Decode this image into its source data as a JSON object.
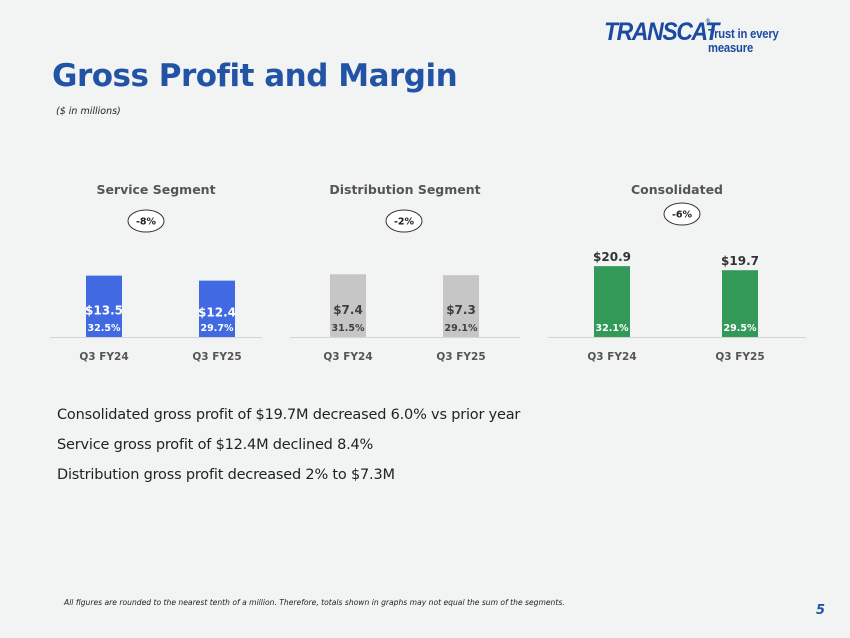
{
  "header": {
    "logo_text": "TRANSCAT",
    "logo_registered": "®",
    "tagline": "Trust in every measure",
    "title": "Gross Profit and Margin",
    "subtitle": "($ in millions)"
  },
  "chart_data": [
    {
      "type": "bar",
      "title": "Service Segment",
      "categories": [
        "Q3 FY24",
        "Q3 FY25"
      ],
      "values": [
        13.5,
        12.4
      ],
      "value_labels": [
        "$13.5",
        "$12.4"
      ],
      "margin_labels": [
        "32.5%",
        "29.7%"
      ],
      "change_label": "-8%",
      "ylim": [
        0,
        22
      ],
      "color": "#4169e1",
      "value_label_position": "inside",
      "value_label_color": "#ffffff",
      "margin_label_color": "#ffffff"
    },
    {
      "type": "bar",
      "title": "Distribution Segment",
      "categories": [
        "Q3 FY24",
        "Q3 FY25"
      ],
      "values": [
        7.4,
        7.3
      ],
      "value_labels": [
        "$7.4",
        "$7.3"
      ],
      "margin_labels": [
        "31.5%",
        "29.1%"
      ],
      "change_label": "-2%",
      "ylim": [
        0,
        11.8
      ],
      "color": "#c6c6c6",
      "value_label_position": "inside",
      "value_label_color": "#404040",
      "margin_label_color": "#404040"
    },
    {
      "type": "bar",
      "title": "Consolidated",
      "categories": [
        "Q3 FY24",
        "Q3 FY25"
      ],
      "values": [
        20.9,
        19.7
      ],
      "value_labels": [
        "$20.9",
        "$19.7"
      ],
      "margin_labels": [
        "32.1%",
        "29.5%"
      ],
      "change_label": "-6%",
      "ylim": [
        0,
        29.5
      ],
      "color": "#339959",
      "value_label_position": "above",
      "value_label_color": "#333333",
      "margin_label_color": "#ffffff"
    }
  ],
  "bullets": [
    "Consolidated gross profit of $19.7M decreased 6.0% vs prior year",
    "Service gross profit of $12.4M declined 8.4%",
    "Distribution gross profit decreased 2% to $7.3M"
  ],
  "footnote": "All figures are rounded to the nearest tenth of a million. Therefore, totals shown in graphs may not equal the sum of the segments.",
  "page_number": "5",
  "colors": {
    "title_blue": "#2253a4",
    "background": "#f2f4f3"
  }
}
